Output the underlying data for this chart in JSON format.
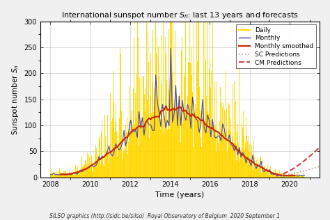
{
  "title": "International sunspot number $S_n$: last 13 years and forecasts",
  "xlabel": "Time (years)",
  "ylabel": "Sunspot number $S_n$",
  "footer": "SILSO graphics (http://sidc.be/silso)  Royal Observatory of Belgium  2020 September 1",
  "xlim": [
    2007.5,
    2021.5
  ],
  "ylim": [
    0,
    300
  ],
  "yticks": [
    0,
    50,
    100,
    150,
    200,
    250,
    300
  ],
  "xticks": [
    2008,
    2010,
    2012,
    2014,
    2016,
    2018,
    2020
  ],
  "bg_color": "#f0f0f0",
  "plot_bg_color": "#ffffff",
  "daily_color": "#FFD700",
  "monthly_color": "#4444aa",
  "smoothed_color": "#cc2200",
  "sc_pred_color": "#cc9999",
  "cm_pred_color": "#cc4444",
  "grid_color": "#cccccc"
}
